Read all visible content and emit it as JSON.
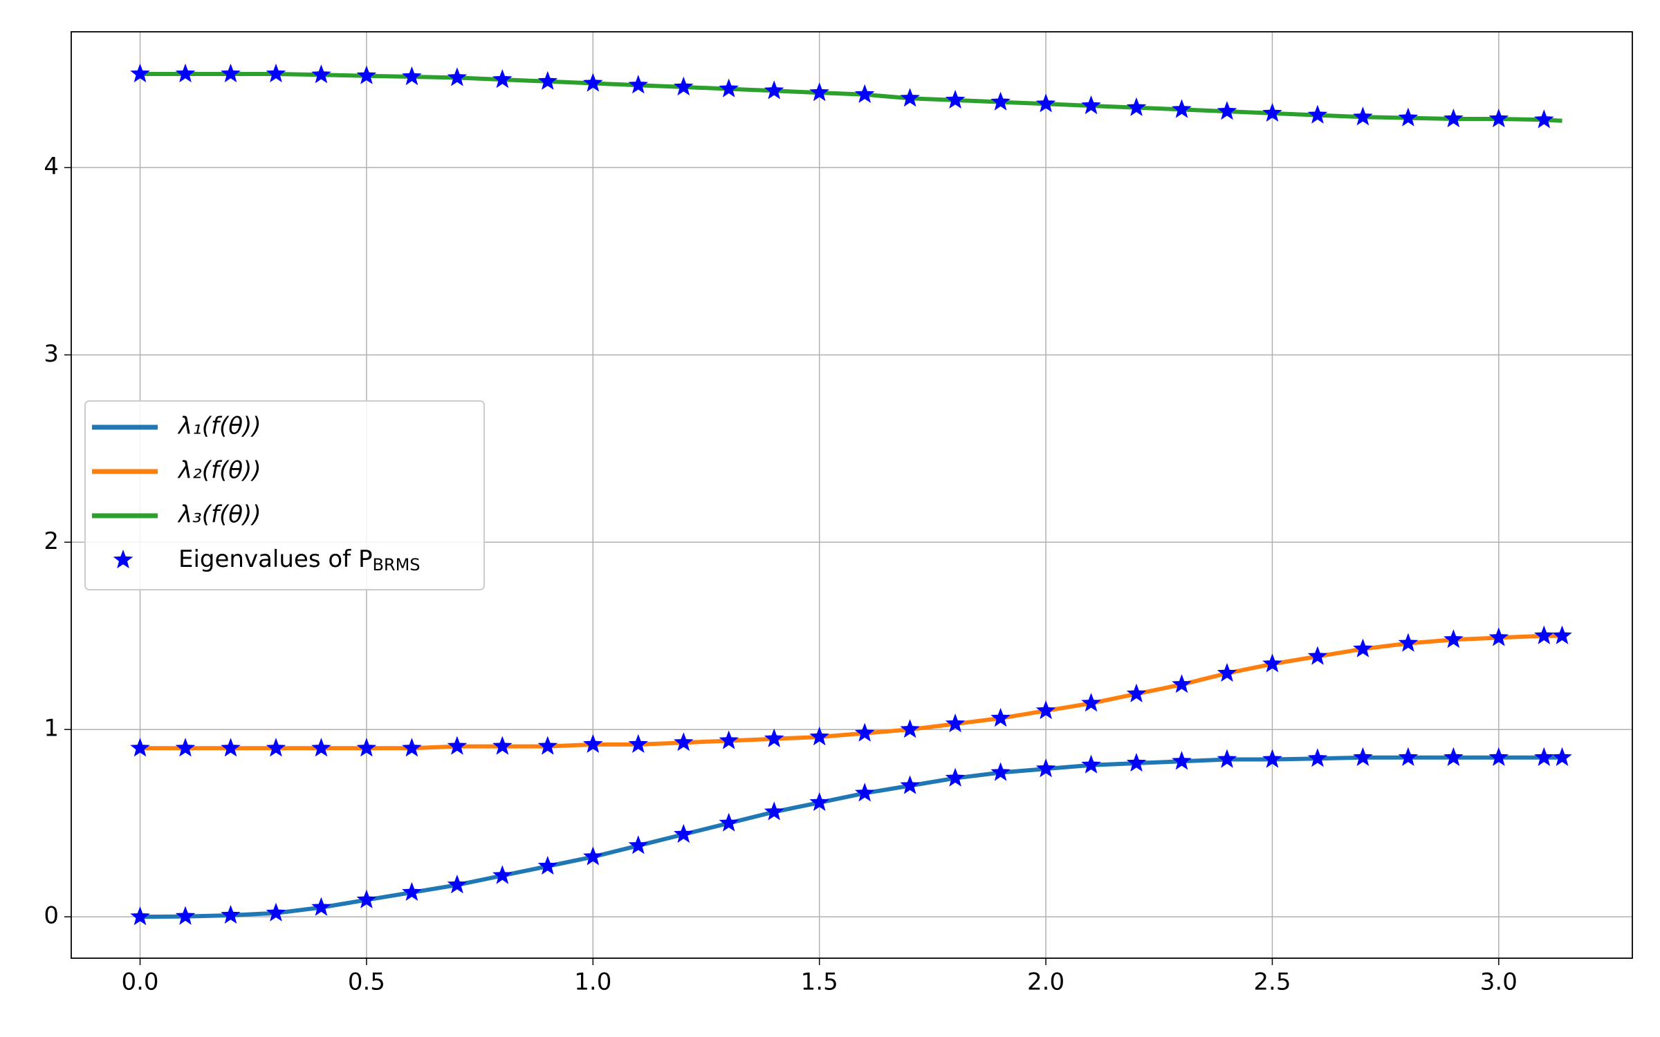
{
  "chart_data": {
    "type": "line",
    "x": [
      0,
      0.1,
      0.2,
      0.3,
      0.4,
      0.5,
      0.6,
      0.7,
      0.8,
      0.9,
      1.0,
      1.1,
      1.2,
      1.3,
      1.4,
      1.5,
      1.6,
      1.7,
      1.8,
      1.9,
      2.0,
      2.1,
      2.2,
      2.3,
      2.4,
      2.5,
      2.6,
      2.7,
      2.8,
      2.9,
      3.0,
      3.1,
      3.14
    ],
    "series": [
      {
        "name": "λ₁(f(θ))",
        "color": "#1f77b4",
        "values": [
          0,
          0.002,
          0.008,
          0.02,
          0.05,
          0.09,
          0.13,
          0.17,
          0.22,
          0.27,
          0.32,
          0.38,
          0.44,
          0.5,
          0.56,
          0.61,
          0.66,
          0.7,
          0.74,
          0.77,
          0.79,
          0.81,
          0.82,
          0.83,
          0.84,
          0.84,
          0.845,
          0.85,
          0.85,
          0.85,
          0.85,
          0.85,
          0.85
        ]
      },
      {
        "name": "λ₂(f(θ))",
        "color": "#ff7f0e",
        "values": [
          0.9,
          0.9,
          0.9,
          0.9,
          0.9,
          0.9,
          0.9,
          0.91,
          0.91,
          0.91,
          0.92,
          0.92,
          0.93,
          0.94,
          0.95,
          0.96,
          0.98,
          1.0,
          1.03,
          1.06,
          1.1,
          1.14,
          1.19,
          1.24,
          1.3,
          1.35,
          1.39,
          1.43,
          1.46,
          1.48,
          1.49,
          1.5,
          1.5
        ]
      },
      {
        "name": "λ₃(f(θ))",
        "color": "#2ca02c",
        "values": [
          4.5,
          4.5,
          4.5,
          4.5,
          4.495,
          4.49,
          4.485,
          4.48,
          4.47,
          4.46,
          4.45,
          4.44,
          4.43,
          4.42,
          4.41,
          4.4,
          4.39,
          4.37,
          4.36,
          4.35,
          4.34,
          4.33,
          4.32,
          4.31,
          4.3,
          4.29,
          4.28,
          4.27,
          4.265,
          4.26,
          4.26,
          4.255,
          4.25
        ]
      },
      {
        "name": "Eigenvalues of P",
        "name_sub": "BRMS",
        "color": "#0000ff",
        "marker": "star",
        "values": [
          [
            0,
            0.002,
            0.008,
            0.02,
            0.05,
            0.09,
            0.13,
            0.17,
            0.22,
            0.27,
            0.32,
            0.38,
            0.44,
            0.5,
            0.56,
            0.61,
            0.66,
            0.7,
            0.74,
            0.77,
            0.79,
            0.81,
            0.82,
            0.83,
            0.84,
            0.84,
            0.845,
            0.85,
            0.85,
            0.85,
            0.85,
            0.85,
            0.85
          ],
          [
            0.9,
            0.9,
            0.9,
            0.9,
            0.9,
            0.9,
            0.9,
            0.91,
            0.91,
            0.91,
            0.92,
            0.92,
            0.93,
            0.94,
            0.95,
            0.96,
            0.98,
            1.0,
            1.03,
            1.06,
            1.1,
            1.14,
            1.19,
            1.24,
            1.3,
            1.35,
            1.39,
            1.43,
            1.46,
            1.48,
            1.49,
            1.5,
            1.5
          ],
          [
            4.5,
            4.5,
            4.5,
            4.5,
            4.495,
            4.49,
            4.485,
            4.48,
            4.47,
            4.46,
            4.45,
            4.44,
            4.43,
            4.42,
            4.41,
            4.4,
            4.39,
            4.37,
            4.36,
            4.35,
            4.34,
            4.33,
            4.32,
            4.31,
            4.3,
            4.29,
            4.28,
            4.27,
            4.265,
            4.26,
            4.26,
            4.255,
            null
          ]
        ]
      }
    ],
    "xlim": [
      -0.152,
      3.295
    ],
    "ylim": [
      -0.221,
      4.725
    ],
    "xticks": [
      {
        "value": 0,
        "label": "0.0"
      },
      0.5,
      {
        "value": 1,
        "label": "1.0"
      },
      1.5,
      {
        "value": 2,
        "label": "2.0"
      },
      2.5,
      {
        "value": 3,
        "label": "3.0"
      }
    ],
    "yticks": [
      0,
      1,
      2,
      3,
      4
    ],
    "grid": true,
    "legend": "center-left"
  }
}
